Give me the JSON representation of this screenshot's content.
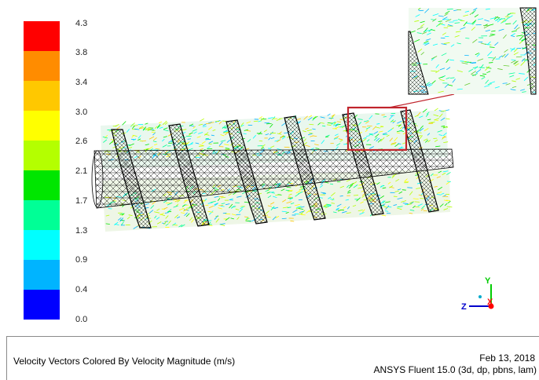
{
  "colorbar": {
    "colors": [
      "#ff0000",
      "#ff8c00",
      "#ffc800",
      "#ffff00",
      "#b4ff00",
      "#00e600",
      "#00ff96",
      "#00ffff",
      "#00b4ff",
      "#0000ff"
    ],
    "labels": [
      "4.3",
      "3.8",
      "3.4",
      "3.0",
      "2.6",
      "2.1",
      "1.7",
      "1.3",
      "0.9",
      "0.4",
      "0.0"
    ]
  },
  "footer": {
    "title": "Velocity Vectors Colored By Velocity Magnitude (m/s)",
    "date": "Feb 13, 2018",
    "solver": "ANSYS Fluent 15.0 (3d, dp, pbns, lam)"
  },
  "triad": {
    "x_label": "X",
    "y_label": "Y",
    "z_label": "Z",
    "x_color": "#ff0000",
    "y_color": "#00cc00",
    "z_color": "#0000cc"
  },
  "highlight": {
    "box_color": "#c0242c"
  }
}
